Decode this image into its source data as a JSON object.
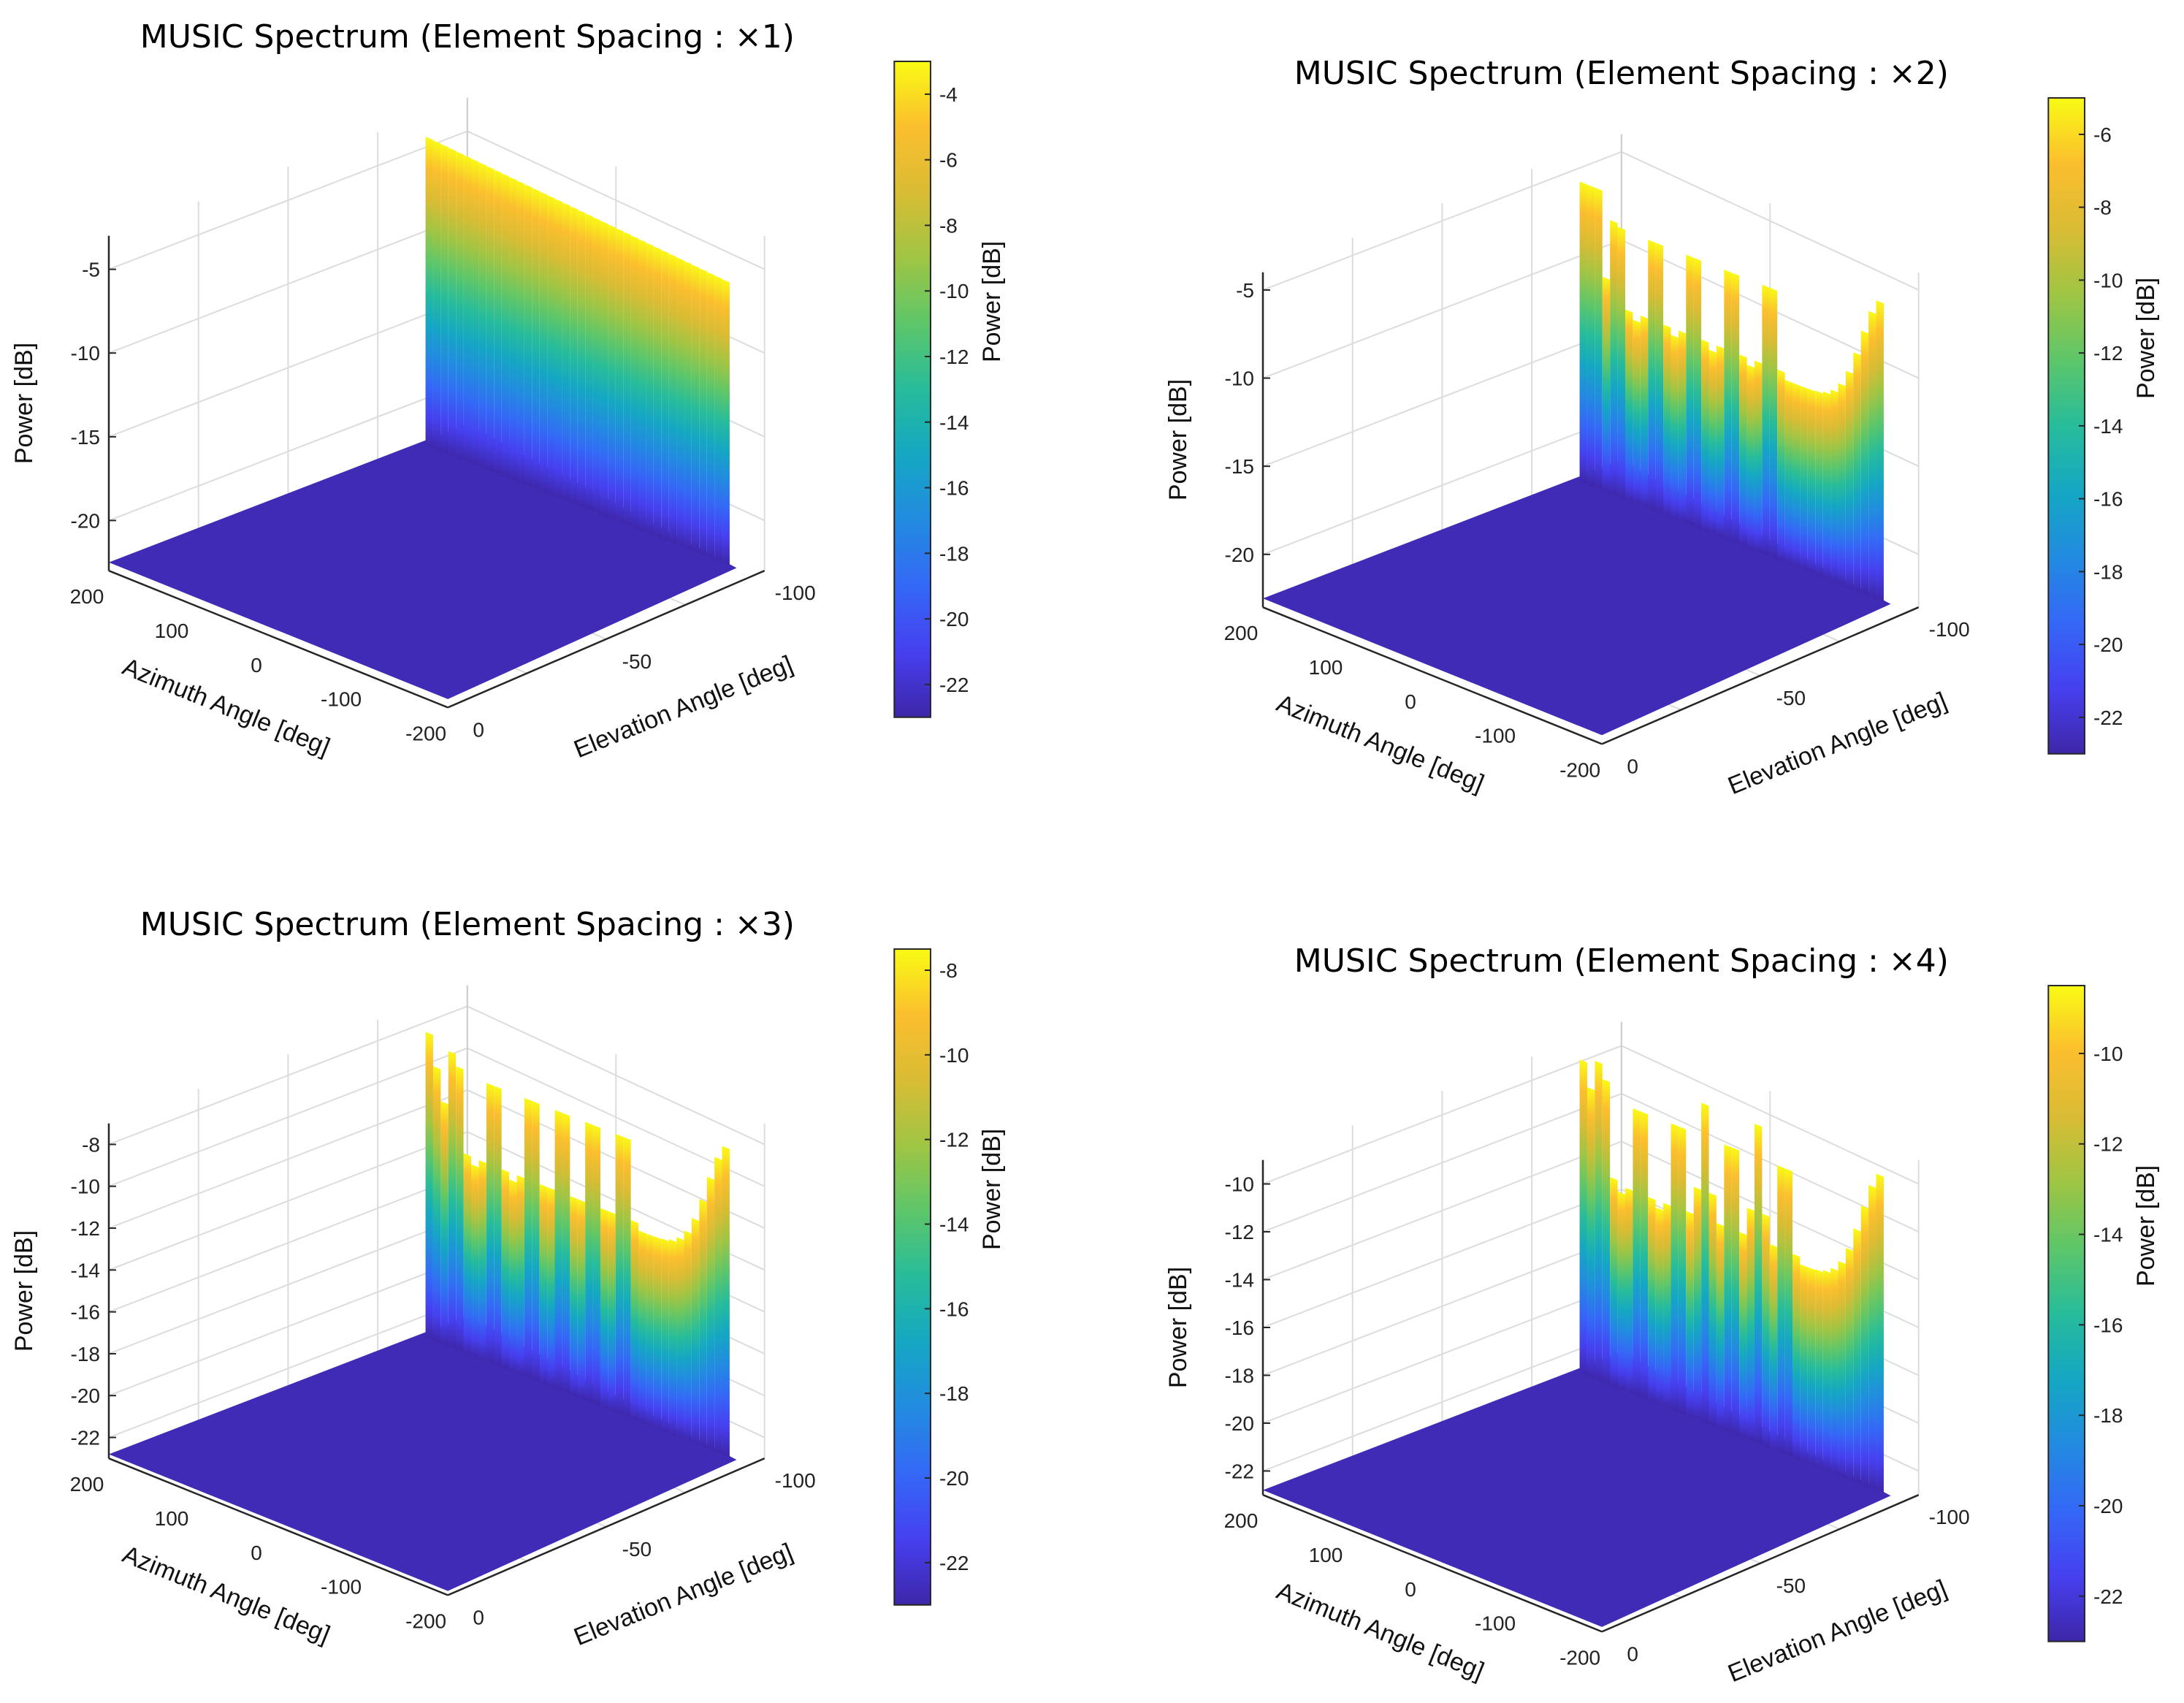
{
  "colormap": [
    "#3e26a8",
    "#4743f8",
    "#2f71f5",
    "#1d96d7",
    "#0fb3b6",
    "#3fc47f",
    "#8ac84b",
    "#d0bd35",
    "#fbb731",
    "#f9fb15"
  ],
  "chart_data": [
    {
      "type": "surface",
      "title": "MUSIC Spectrum (Element Spacing : ×1)",
      "xlabel": "Azimuth Angle [deg]",
      "ylabel": "Elevation Angle [deg]",
      "zlabel": "Power [dB]",
      "colorbar_label": "Power [dB]",
      "xlim": [
        -200,
        200
      ],
      "ylim": [
        -100,
        0
      ],
      "zlim": [
        -23,
        -3
      ],
      "x_ticks": [
        "200",
        "100",
        "0",
        "-100",
        "-200"
      ],
      "y_ticks": [
        "0",
        "-50",
        "-100"
      ],
      "z_ticks": [
        "-5",
        "-10",
        "-15",
        "-20"
      ],
      "z_tick_values": [
        -5,
        -10,
        -15,
        -20
      ],
      "colorbar_range": [
        -23,
        -3
      ],
      "colorbar_ticks": [
        "-4",
        "-6",
        "-8",
        "-10",
        "-12",
        "-14",
        "-16",
        "-18",
        "-20",
        "-22"
      ],
      "colorbar_tick_values": [
        -4,
        -6,
        -8,
        -10,
        -12,
        -14,
        -16,
        -18,
        -20,
        -22
      ],
      "floor_db": -22.5,
      "peak_db": -3.5,
      "peaks": []
    },
    {
      "type": "surface",
      "title": "MUSIC Spectrum (Element Spacing : ×2)",
      "xlabel": "Azimuth Angle [deg]",
      "ylabel": "Elevation Angle [deg]",
      "zlabel": "Power [dB]",
      "colorbar_label": "Power [dB]",
      "xlim": [
        -200,
        200
      ],
      "ylim": [
        -100,
        0
      ],
      "zlim": [
        -23,
        -4
      ],
      "x_ticks": [
        "200",
        "100",
        "0",
        "-100",
        "-200"
      ],
      "y_ticks": [
        "0",
        "-50",
        "-100"
      ],
      "z_ticks": [
        "-5",
        "-10",
        "-15",
        "-20"
      ],
      "z_tick_values": [
        -5,
        -10,
        -15,
        -20
      ],
      "colorbar_range": [
        -23,
        -5
      ],
      "colorbar_ticks": [
        "-6",
        "-8",
        "-10",
        "-12",
        "-14",
        "-16",
        "-18",
        "-20",
        "-22"
      ],
      "colorbar_tick_values": [
        -6,
        -8,
        -10,
        -12,
        -14,
        -16,
        -18,
        -20,
        -22
      ],
      "floor_db": -22.5,
      "peak_db": -5.5,
      "peaks": [
        -50,
        0,
        50,
        100,
        150,
        180
      ]
    },
    {
      "type": "surface",
      "title": "MUSIC Spectrum (Element Spacing : ×3)",
      "xlabel": "Azimuth Angle [deg]",
      "ylabel": "Elevation Angle [deg]",
      "zlabel": "Power [dB]",
      "colorbar_label": "Power [dB]",
      "xlim": [
        -200,
        200
      ],
      "ylim": [
        -100,
        0
      ],
      "zlim": [
        -23,
        -7
      ],
      "x_ticks": [
        "200",
        "100",
        "0",
        "-100",
        "-200"
      ],
      "y_ticks": [
        "0",
        "-50",
        "-100"
      ],
      "z_ticks": [
        "-8",
        "-10",
        "-12",
        "-14",
        "-16",
        "-18",
        "-20",
        "-22"
      ],
      "z_tick_values": [
        -8,
        -10,
        -12,
        -14,
        -16,
        -18,
        -20,
        -22
      ],
      "colorbar_range": [
        -23,
        -7.5
      ],
      "colorbar_ticks": [
        "-8",
        "-10",
        "-12",
        "-14",
        "-16",
        "-18",
        "-20",
        "-22"
      ],
      "colorbar_tick_values": [
        -8,
        -10,
        -12,
        -14,
        -16,
        -18,
        -20,
        -22
      ],
      "floor_db": -22.8,
      "peak_db": -8.0,
      "peaks": [
        -60,
        -20,
        20,
        60,
        110,
        160
      ]
    },
    {
      "type": "surface",
      "title": "MUSIC Spectrum (Element Spacing : ×4)",
      "xlabel": "Azimuth Angle [deg]",
      "ylabel": "Elevation Angle [deg]",
      "zlabel": "Power [dB]",
      "colorbar_label": "Power [dB]",
      "xlim": [
        -200,
        200
      ],
      "ylim": [
        -100,
        0
      ],
      "zlim": [
        -23,
        -9
      ],
      "x_ticks": [
        "200",
        "100",
        "0",
        "-100",
        "-200"
      ],
      "y_ticks": [
        "0",
        "-50",
        "-100"
      ],
      "z_ticks": [
        "-10",
        "-12",
        "-14",
        "-16",
        "-18",
        "-20",
        "-22"
      ],
      "z_tick_values": [
        -10,
        -12,
        -14,
        -16,
        -18,
        -20,
        -22
      ],
      "colorbar_range": [
        -23,
        -8.5
      ],
      "colorbar_ticks": [
        "-10",
        "-12",
        "-14",
        "-16",
        "-18",
        "-20",
        "-22"
      ],
      "colorbar_tick_values": [
        -10,
        -12,
        -14,
        -16,
        -18,
        -20,
        -22
      ],
      "floor_db": -22.8,
      "peak_db": -9.5,
      "peaks": [
        -70,
        -35,
        0,
        35,
        70,
        120,
        170
      ]
    }
  ]
}
